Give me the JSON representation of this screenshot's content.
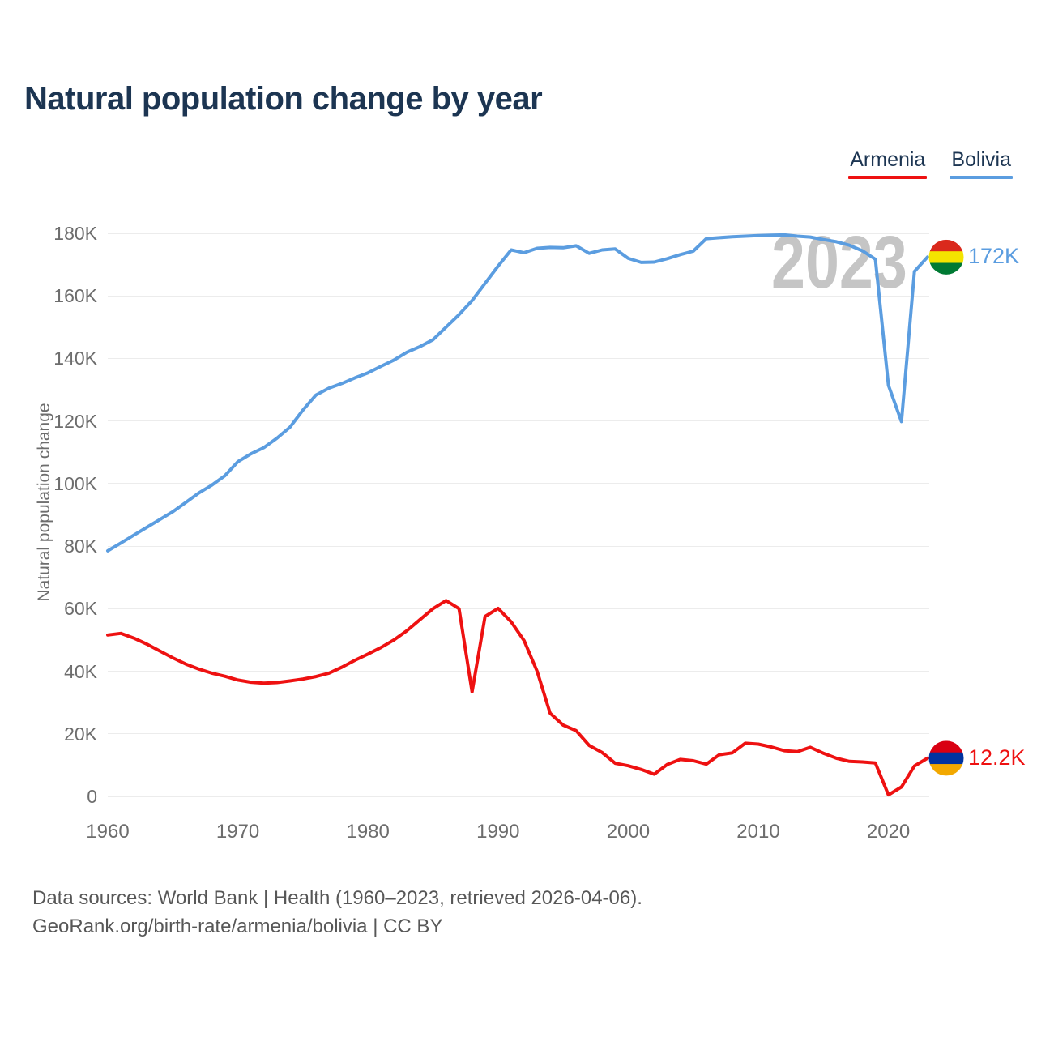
{
  "title": "Natural population change by year",
  "watermark": "2023",
  "legend": [
    {
      "label": "Armenia",
      "color": "#ee1111"
    },
    {
      "label": "Bolivia",
      "color": "#5b9de0"
    }
  ],
  "y_axis": {
    "label": "Natural population change",
    "ticks": [
      "0",
      "20K",
      "40K",
      "60K",
      "80K",
      "100K",
      "120K",
      "140K",
      "160K",
      "180K"
    ],
    "tick_step_thousands": 20,
    "max_thousands": 180
  },
  "x_axis": {
    "ticks": [
      1960,
      1970,
      1980,
      1990,
      2000,
      2010,
      2020
    ]
  },
  "footer": {
    "line1": "Data sources: World Bank | Health (1960–2023, retrieved 2026-04-06).",
    "line2": "GeoRank.org/birth-rate/armenia/bolivia | CC BY"
  },
  "chart_data": {
    "type": "line",
    "title": "Natural population change by year",
    "ylabel": "Natural population change",
    "units": "thousands",
    "ylim_thousands": [
      0,
      180
    ],
    "grid": "horizontal",
    "legend_position": "top-right",
    "x": [
      1960,
      1961,
      1962,
      1963,
      1964,
      1965,
      1966,
      1967,
      1968,
      1969,
      1970,
      1971,
      1972,
      1973,
      1974,
      1975,
      1976,
      1977,
      1978,
      1979,
      1980,
      1981,
      1982,
      1983,
      1984,
      1985,
      1986,
      1987,
      1988,
      1989,
      1990,
      1991,
      1992,
      1993,
      1994,
      1995,
      1996,
      1997,
      1998,
      1999,
      2000,
      2001,
      2002,
      2003,
      2004,
      2005,
      2006,
      2007,
      2008,
      2009,
      2010,
      2011,
      2012,
      2013,
      2014,
      2015,
      2016,
      2017,
      2018,
      2019,
      2020,
      2021,
      2022,
      2023
    ],
    "series": [
      {
        "name": "Bolivia",
        "color": "#5b9de0",
        "end_label": "172K",
        "end_value_thousands": 172.4,
        "flag_stripes": [
          "#da291c",
          "#f4e400",
          "#007a33"
        ],
        "values_thousands": [
          78.5,
          81,
          83.5,
          86,
          88.5,
          91,
          94,
          97,
          99.5,
          102.5,
          107,
          109.5,
          111.5,
          114.5,
          118,
          123.5,
          128.3,
          130.5,
          132,
          133.8,
          135.4,
          137.5,
          139.5,
          142,
          143.8,
          146,
          150,
          154,
          158.5,
          164,
          169.5,
          174.7,
          173.8,
          175.2,
          175.5,
          175.4,
          176,
          173.6,
          174.7,
          175,
          172,
          170.7,
          170.8,
          171.9,
          173.2,
          174.3,
          178.3,
          178.6,
          178.9,
          179.1,
          179.3,
          179.4,
          179.5,
          179.1,
          178.8,
          178,
          177.3,
          176.2,
          174.4,
          171.7,
          131.4,
          119.8,
          167.8,
          172.4
        ]
      },
      {
        "name": "Armenia",
        "color": "#ee1111",
        "end_label": "12.2K",
        "end_value_thousands": 12.2,
        "flag_stripes": [
          "#d90012",
          "#0033a0",
          "#f2a800"
        ],
        "values_thousands": [
          51.6,
          52.1,
          50.6,
          48.7,
          46.5,
          44.3,
          42.3,
          40.7,
          39.4,
          38.4,
          37.2,
          36.5,
          36.2,
          36.4,
          36.9,
          37.5,
          38.3,
          39.4,
          41.3,
          43.5,
          45.5,
          47.6,
          50,
          53,
          56.5,
          60,
          62.6,
          60,
          33.4,
          57.5,
          60.1,
          55.8,
          49.8,
          40,
          26.6,
          22.8,
          21,
          16.3,
          14,
          10.6,
          9.8,
          8.6,
          7.1,
          10.2,
          11.8,
          11.4,
          10.3,
          13.3,
          13.9,
          17,
          16.7,
          15.8,
          14.6,
          14.3,
          15.7,
          13.8,
          12.2,
          11.2,
          11,
          10.7,
          0.5,
          3,
          9.7,
          12.2
        ]
      }
    ]
  }
}
